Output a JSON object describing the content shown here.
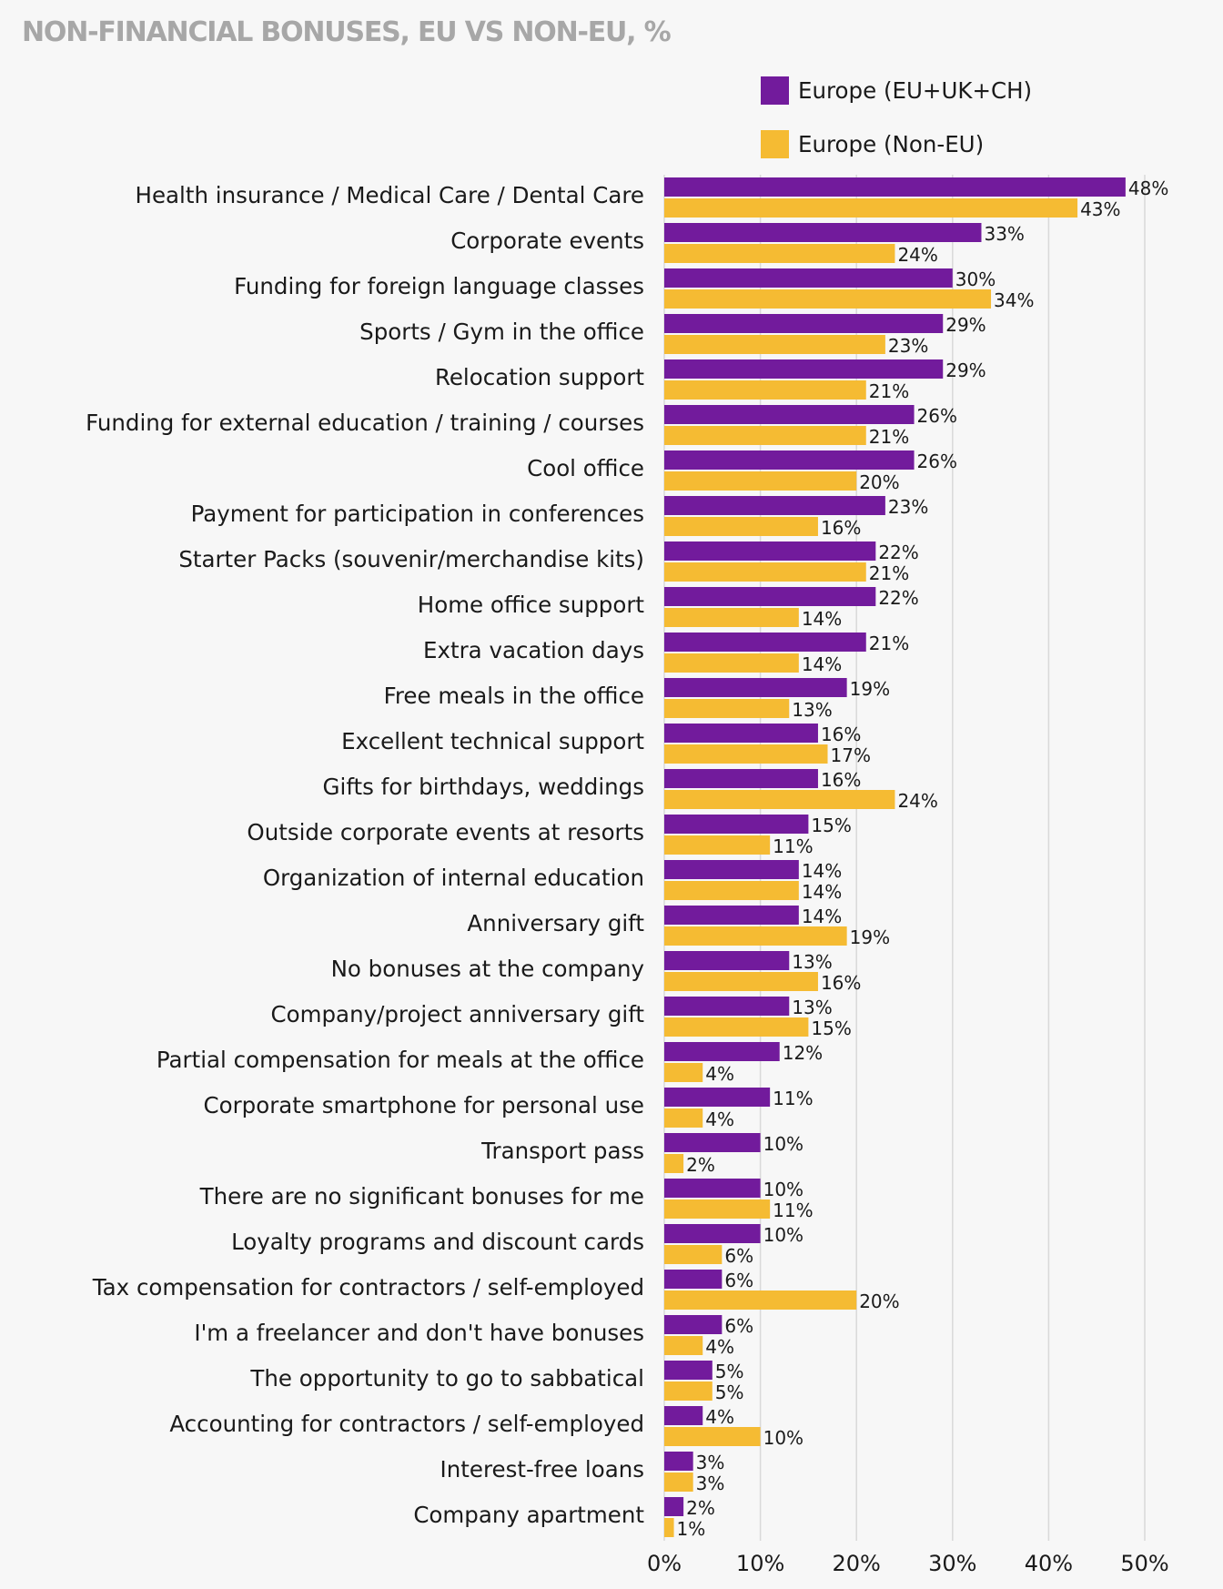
{
  "chart_data": {
    "type": "bar",
    "orientation": "horizontal",
    "title": "NON-FINANCIAL BONUSES, EU VS NON-EU, %",
    "xlim": [
      0,
      50
    ],
    "xticks": [
      0,
      10,
      20,
      30,
      40,
      50
    ],
    "xtick_labels": [
      "0%",
      "10%",
      "20%",
      "30%",
      "40%",
      "50%"
    ],
    "value_suffix": "%",
    "grid": "vertical",
    "legend_position": "top-right",
    "categories": [
      "Health insurance / Medical Care / Dental Care",
      "Corporate events",
      "Funding for foreign language classes",
      "Sports / Gym in the office",
      "Relocation support",
      "Funding for external education / training / courses",
      "Cool office",
      "Payment for participation in conferences",
      "Starter Packs (souvenir/merchandise kits)",
      "Home office support",
      "Extra vacation days",
      "Free meals in the office",
      "Excellent technical support",
      "Gifts for birthdays, weddings",
      "Outside corporate events at resorts",
      "Organization of internal education",
      "Anniversary gift",
      "No bonuses at the company",
      "Company/project anniversary gift",
      "Partial compensation for meals at the office",
      "Corporate smartphone for personal use",
      "Transport pass",
      "There are no significant bonuses for me",
      "Loyalty programs and discount cards",
      "Tax compensation for contractors / self-employed",
      "I'm a freelancer and don't have bonuses",
      "The opportunity to go to sabbatical",
      "Accounting for contractors / self-employed",
      "Interest-free loans",
      "Company apartment"
    ],
    "series": [
      {
        "name": "Europe (EU+UK+CH)",
        "color": "#721b9c",
        "values": [
          48,
          33,
          30,
          29,
          29,
          26,
          26,
          23,
          22,
          22,
          21,
          19,
          16,
          16,
          15,
          14,
          14,
          13,
          13,
          12,
          11,
          10,
          10,
          10,
          6,
          6,
          5,
          4,
          3,
          2
        ]
      },
      {
        "name": "Europe (Non-EU)",
        "color": "#f5bb33",
        "values": [
          43,
          24,
          34,
          23,
          21,
          21,
          20,
          16,
          21,
          14,
          14,
          13,
          17,
          24,
          11,
          14,
          19,
          16,
          15,
          4,
          4,
          2,
          11,
          6,
          20,
          4,
          5,
          10,
          3,
          1
        ]
      }
    ]
  }
}
